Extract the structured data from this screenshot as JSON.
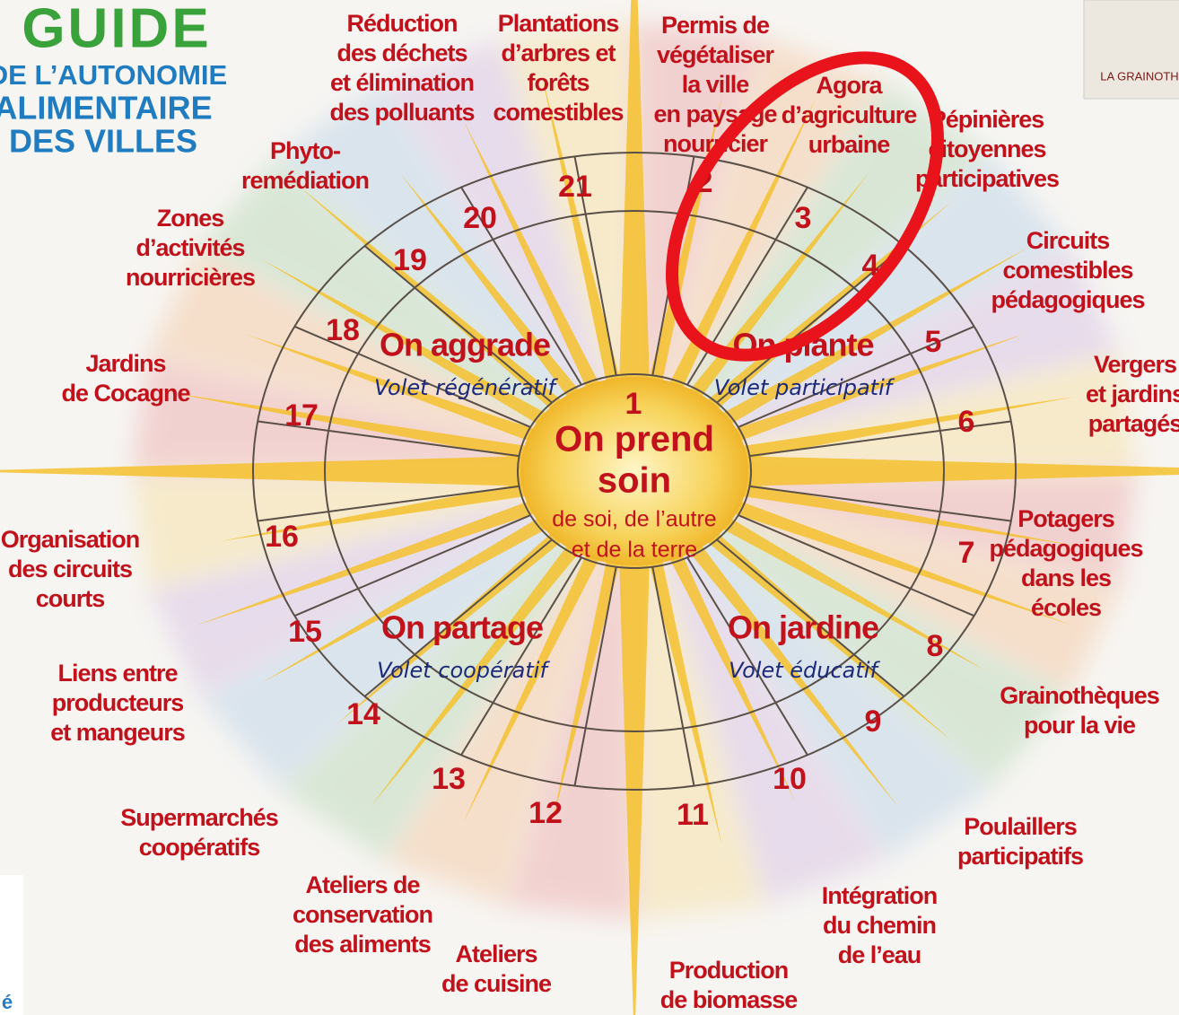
{
  "header": {
    "title": "GUIDE",
    "subtitle_lines": [
      "DE L’AUTONOMIE",
      "ALIMENTAIRE",
      "DES VILLES"
    ]
  },
  "center": {
    "number": 1,
    "title_lines": [
      "On prend",
      "soin"
    ],
    "subtitle_lines": [
      "de soi, de l’autre",
      "et de la terre"
    ]
  },
  "quadrants": [
    {
      "title": "On aggrade",
      "subtitle": "Volet régénératif"
    },
    {
      "title": "On plante",
      "subtitle": "Volet participatif"
    },
    {
      "title": "On partage",
      "subtitle": "Volet coopératif"
    },
    {
      "title": "On jardine",
      "subtitle": "Volet éducatif"
    }
  ],
  "items": [
    {
      "number": 2,
      "lines": [
        "Permis de",
        "végétaliser",
        "la ville",
        "en paysage",
        "nourricier"
      ]
    },
    {
      "number": 3,
      "lines": [
        "Agora",
        "d’agriculture",
        "urbaine"
      ]
    },
    {
      "number": 4,
      "lines": [
        "Pépinières",
        "citoyennes",
        "participatives"
      ]
    },
    {
      "number": 5,
      "lines": [
        "Circuits",
        "comestibles",
        "pédagogiques"
      ]
    },
    {
      "number": 6,
      "lines": [
        "Vergers",
        "et jardins",
        "partagés"
      ]
    },
    {
      "number": 7,
      "lines": [
        "Potagers",
        "pédagogiques",
        "dans les",
        "écoles"
      ]
    },
    {
      "number": 8,
      "lines": [
        "Grainothèques",
        "pour la vie"
      ]
    },
    {
      "number": 9,
      "lines": [
        "Poulaillers",
        "participatifs"
      ]
    },
    {
      "number": 10,
      "lines": [
        "Intégration",
        "du chemin",
        "de l’eau"
      ]
    },
    {
      "number": 11,
      "lines": [
        "Production",
        "de biomasse"
      ]
    },
    {
      "number": 12,
      "lines": [
        "Ateliers",
        "de cuisine"
      ]
    },
    {
      "number": 13,
      "lines": [
        "Ateliers de",
        "conservation",
        "des aliments"
      ]
    },
    {
      "number": 14,
      "lines": [
        "Supermarchés",
        "coopératifs"
      ]
    },
    {
      "number": 15,
      "lines": [
        "Liens entre",
        "producteurs",
        "et mangeurs"
      ]
    },
    {
      "number": 16,
      "lines": [
        "Organisation",
        "des circuits",
        "courts"
      ]
    },
    {
      "number": 17,
      "lines": [
        "Jardins",
        "de Cocagne"
      ]
    },
    {
      "number": 18,
      "lines": [
        "Zones",
        "d’activités",
        "nourricières"
      ]
    },
    {
      "number": 19,
      "lines": [
        "Phyto-",
        "remédiation"
      ]
    },
    {
      "number": 20,
      "lines": [
        "Réduction",
        "des déchets",
        "et élimination",
        "des polluants"
      ]
    },
    {
      "number": 21,
      "lines": [
        "Plantations",
        "d’arbres et",
        "forêts",
        "comestibles"
      ]
    }
  ],
  "decor": {
    "seed_packet": "LA GRAINOTH",
    "corner_text": "é"
  }
}
